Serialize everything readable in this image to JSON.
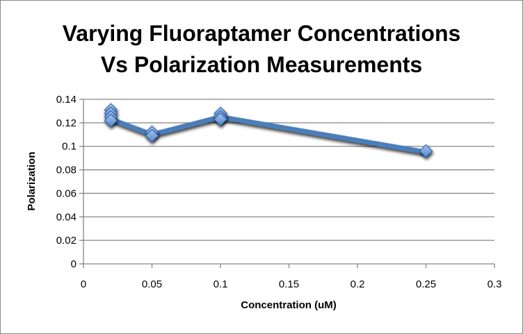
{
  "chart_data": {
    "type": "line",
    "title_line1": "Varying Fluoraptamer Concentrations",
    "title_line2": "Vs Polarization Measurements",
    "xlabel": "Concentration (uM)",
    "ylabel": "Polarization",
    "xlim": [
      0,
      0.3
    ],
    "ylim": [
      0,
      0.14
    ],
    "xticks": [
      "0",
      "0.05",
      "0.1",
      "0.15",
      "0.2",
      "0.25",
      "0.3"
    ],
    "yticks": [
      "0",
      "0.02",
      "0.04",
      "0.06",
      "0.08",
      "0.1",
      "0.12",
      "0.14"
    ],
    "grid": "horizontal",
    "series": [
      {
        "name": "Polarization",
        "color": "#4a7ebb",
        "line_x": [
          0.02,
          0.05,
          0.1,
          0.25
        ],
        "line_y": [
          0.123,
          0.11,
          0.125,
          0.095
        ],
        "points": [
          {
            "x": 0.02,
            "y": 0.131
          },
          {
            "x": 0.02,
            "y": 0.128
          },
          {
            "x": 0.02,
            "y": 0.125
          },
          {
            "x": 0.02,
            "y": 0.122
          },
          {
            "x": 0.05,
            "y": 0.112
          },
          {
            "x": 0.05,
            "y": 0.109
          },
          {
            "x": 0.1,
            "y": 0.128
          },
          {
            "x": 0.1,
            "y": 0.125
          },
          {
            "x": 0.1,
            "y": 0.123
          },
          {
            "x": 0.25,
            "y": 0.096
          }
        ]
      }
    ]
  }
}
